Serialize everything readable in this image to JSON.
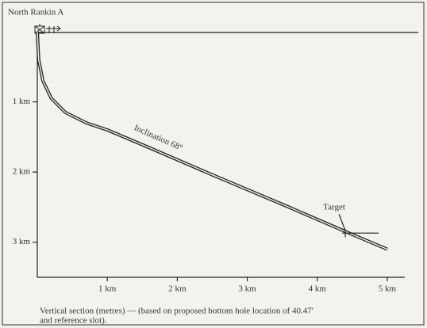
{
  "chart_data": {
    "type": "line",
    "title": "North Rankin A",
    "annotation": "Inclination 68°",
    "caption": [
      "Vertical section (metres) — (based on proposed bottom hole location of 40.47'",
      "and reference slot)."
    ],
    "x": [
      0,
      0.02,
      0.08,
      0.2,
      0.4,
      0.7,
      1.0,
      1.5,
      2.5,
      3.5,
      4.5,
      5.0
    ],
    "series": [
      {
        "color": "#222222",
        "values": [
          0,
          0.4,
          0.7,
          0.95,
          1.15,
          1.3,
          1.4,
          1.61,
          2.04,
          2.46,
          2.89,
          3.1
        ]
      }
    ],
    "target": {
      "label": "Target",
      "x": 4.4,
      "y": 2.87
    },
    "xlim": [
      0,
      5.25
    ],
    "ylim": [
      0,
      3.5
    ],
    "y_inverted": true,
    "xticks": [
      {
        "value": 1,
        "label": "1 km"
      },
      {
        "value": 2,
        "label": "2 km"
      },
      {
        "value": 3,
        "label": "3 km"
      },
      {
        "value": 4,
        "label": "4 km"
      },
      {
        "value": 5,
        "label": "5 km"
      }
    ],
    "yticks": [
      {
        "value": 1,
        "label": "1 km"
      },
      {
        "value": 2,
        "label": "2 km"
      },
      {
        "value": 3,
        "label": "3 km"
      }
    ]
  }
}
